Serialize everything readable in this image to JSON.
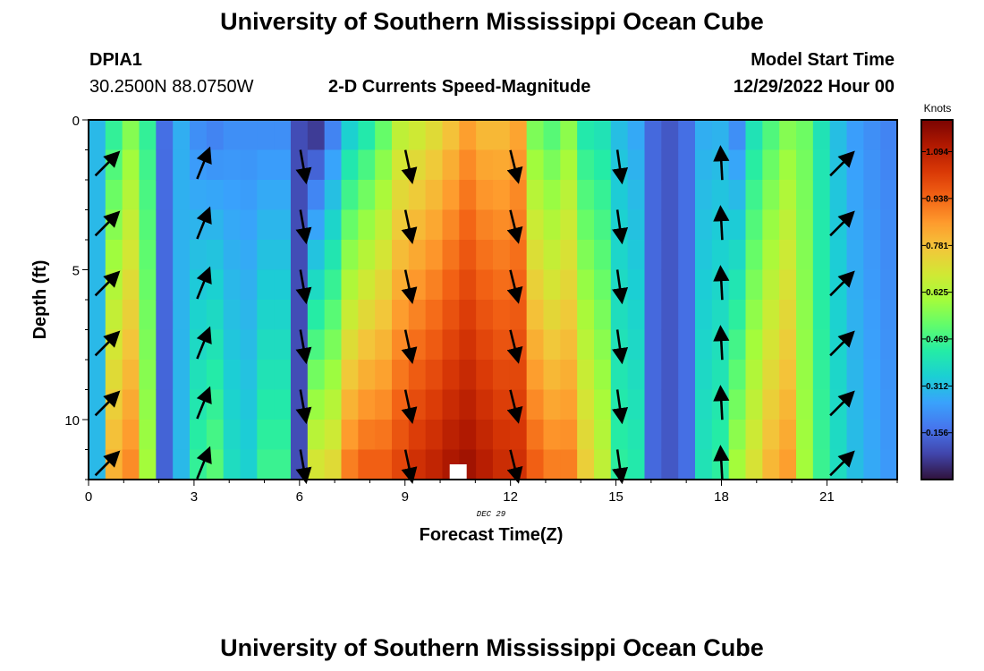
{
  "header": {
    "title": "University of Southern Mississippi Ocean Cube",
    "station_id": "DPIA1",
    "station_coords": "30.2500N  88.0750W",
    "plot_subtitle": "2-D Currents Speed-Magnitude",
    "model_start_label": "Model Start Time",
    "model_start_value": "12/29/2022 Hour 00",
    "footer_title": "University of Southern Mississippi Ocean Cube"
  },
  "chart_data": {
    "type": "heatmap",
    "title": "2-D Currents Speed-Magnitude",
    "xlabel": "Forecast Time(Z)",
    "ylabel": "Depth (ft)",
    "x_date_label": "DEC 29",
    "xlim": [
      0,
      23
    ],
    "ylim": [
      0,
      12
    ],
    "x_ticks": [
      0,
      3,
      6,
      9,
      12,
      15,
      18,
      21
    ],
    "y_ticks": [
      0,
      5,
      10
    ],
    "colorbar": {
      "label": "Knots",
      "min": 0,
      "max": 1.2,
      "ticks": [
        0.156,
        0.312,
        0.469,
        0.625,
        0.781,
        0.938,
        1.094
      ],
      "colormap": [
        "#30123b",
        "#4145ab",
        "#4675ed",
        "#39a2fc",
        "#1bcfd4",
        "#24eca6",
        "#61fc6c",
        "#a4fc3b",
        "#d1e834",
        "#f3c63a",
        "#fe9b2d",
        "#f36315",
        "#d93806",
        "#b11901",
        "#7a0402"
      ]
    },
    "surface_speed_by_hour": [
      0.3,
      0.45,
      0.56,
      0.45,
      0.16,
      0.28,
      0.22,
      0.2,
      0.22,
      0.22,
      0.22,
      0.22,
      0.1,
      0.07,
      0.2,
      0.35,
      0.42,
      0.52,
      0.65,
      0.68,
      0.72,
      0.78,
      0.85,
      0.8,
      0.8,
      0.84,
      0.55,
      0.5,
      0.57,
      0.42,
      0.4,
      0.31,
      0.27,
      0.15,
      0.12,
      0.16,
      0.28,
      0.29,
      0.22,
      0.4,
      0.49,
      0.56,
      0.53,
      0.4,
      0.31,
      0.25,
      0.22,
      0.2
    ],
    "bottom_speed_by_hour": [
      0.3,
      0.81,
      0.88,
      0.6,
      0.14,
      0.3,
      0.45,
      0.5,
      0.38,
      0.35,
      0.46,
      0.46,
      0.1,
      0.69,
      0.72,
      0.9,
      0.95,
      0.95,
      1.0,
      1.05,
      1.08,
      1.12,
      1.14,
      1.1,
      1.06,
      1.05,
      0.95,
      0.9,
      0.9,
      0.75,
      0.65,
      0.44,
      0.42,
      0.15,
      0.12,
      0.16,
      0.4,
      0.44,
      0.6,
      0.7,
      0.8,
      0.85,
      0.6,
      0.46,
      0.38,
      0.31,
      0.27,
      0.24
    ],
    "missing_cell": {
      "hour": 10.5,
      "depth": 12
    },
    "vector_columns": [
      {
        "hour": 0.5,
        "direction_deg": 45
      },
      {
        "hour": 3.25,
        "direction_deg": 22
      },
      {
        "hour": 6.1,
        "direction_deg": 170
      },
      {
        "hour": 9.1,
        "direction_deg": 168
      },
      {
        "hour": 12.1,
        "direction_deg": 166
      },
      {
        "hour": 15.1,
        "direction_deg": 172
      },
      {
        "hour": 18.0,
        "direction_deg": 357
      },
      {
        "hour": 21.4,
        "direction_deg": 45
      }
    ],
    "vector_depths": [
      1.5,
      3.5,
      5.5,
      7.5,
      9.5,
      11.5
    ]
  }
}
